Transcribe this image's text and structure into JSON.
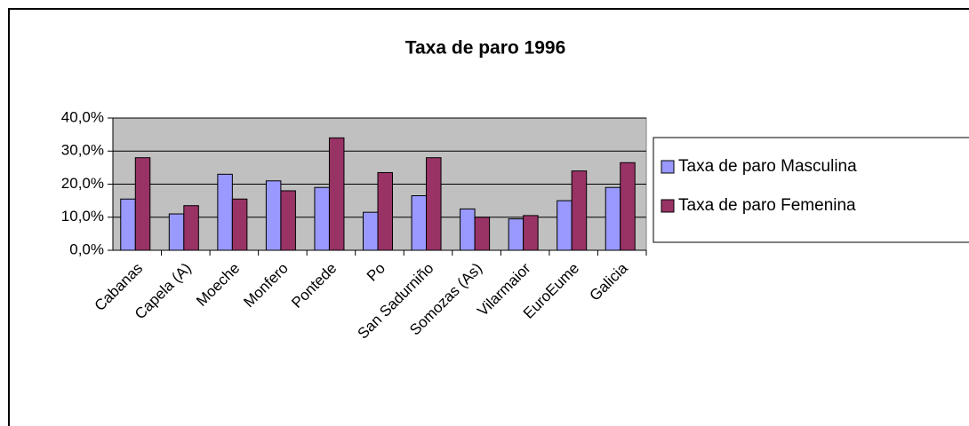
{
  "chart_data": {
    "type": "bar",
    "title": "Taxa de paro 1996",
    "categories": [
      "Cabanas",
      "Capela (A)",
      "Moeche",
      "Monfero",
      "Pontede",
      "Po",
      "San Sadurniño",
      "Somozas (As)",
      "Vilarmaior",
      "EuroEume",
      "Galicia"
    ],
    "series": [
      {
        "name": "Taxa de paro Masculina",
        "color": "#9999ff",
        "values": [
          15.5,
          11,
          23,
          21,
          19,
          11.5,
          16.5,
          12.5,
          9.5,
          15,
          19
        ]
      },
      {
        "name": "Taxa de paro Femenina",
        "color": "#993366",
        "values": [
          28,
          13.5,
          15.5,
          18,
          34,
          23.5,
          28,
          10,
          10.5,
          24,
          26.5
        ]
      }
    ],
    "ylim": [
      0,
      40
    ],
    "yticks": [
      {
        "value": 0,
        "label": "0,0%"
      },
      {
        "value": 10,
        "label": "10,0%"
      },
      {
        "value": 20,
        "label": "20,0%"
      },
      {
        "value": 30,
        "label": "30,0%"
      },
      {
        "value": 40,
        "label": "40,0%"
      }
    ],
    "grid": true,
    "legend": "right"
  }
}
